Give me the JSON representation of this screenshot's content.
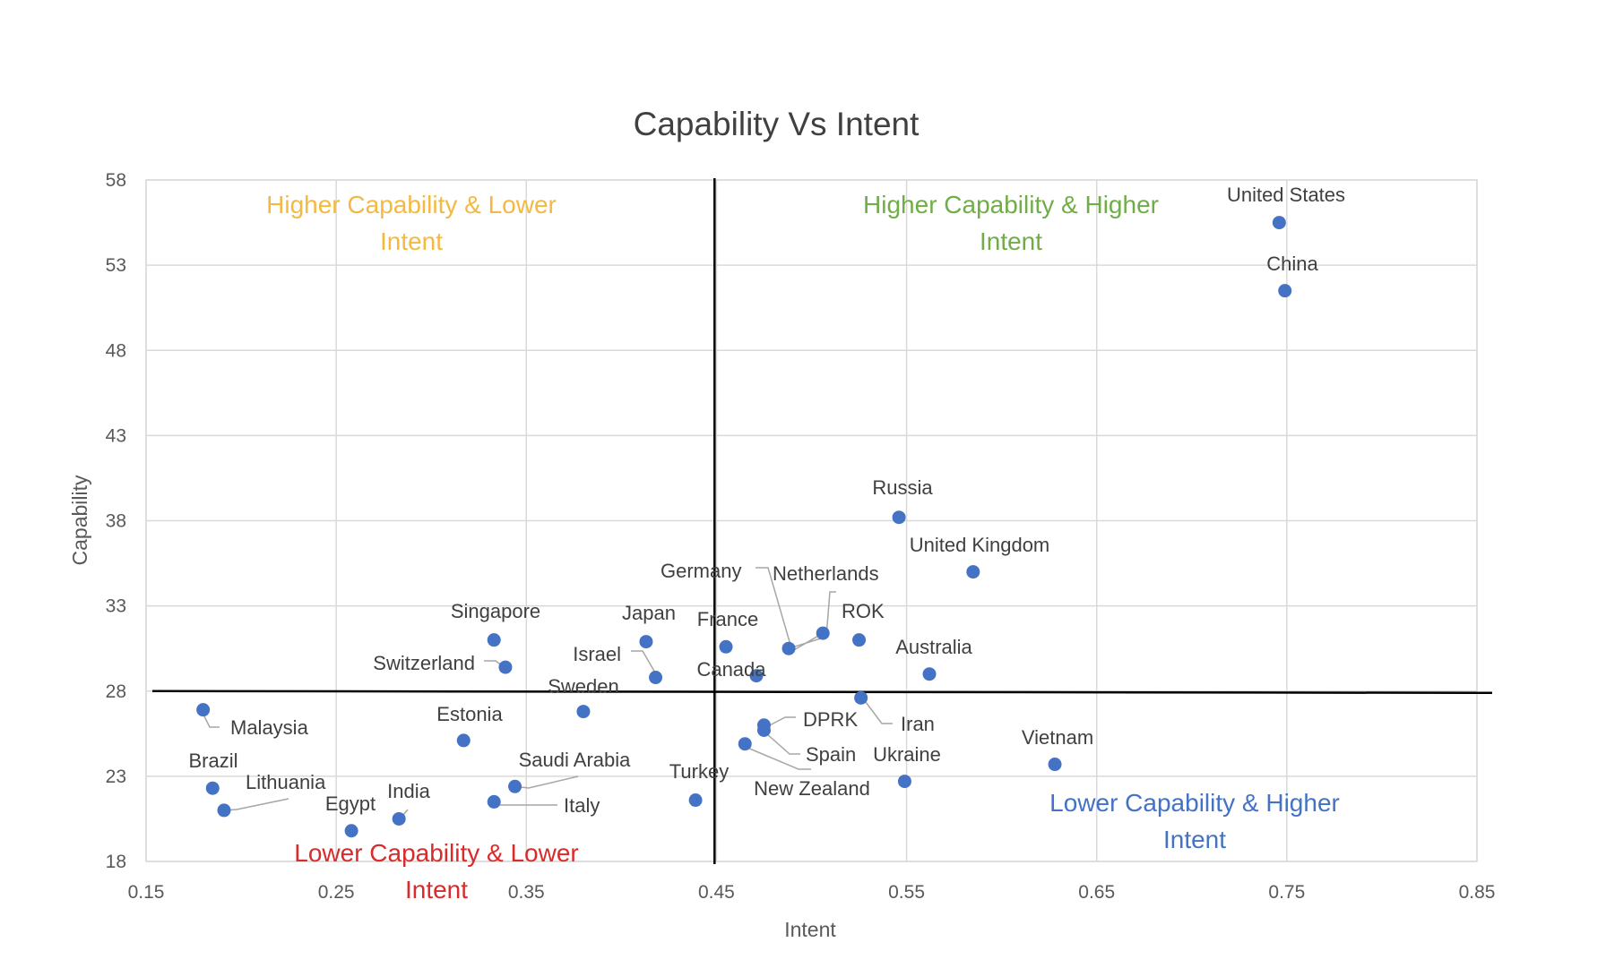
{
  "chart_data": {
    "type": "scatter",
    "title": "Capability Vs Intent",
    "xlabel": "Intent",
    "ylabel": "Capability",
    "xlim": [
      0.15,
      0.85
    ],
    "ylim": [
      18,
      58
    ],
    "xticks": [
      "0.15",
      "0.25",
      "0.35",
      "0.45",
      "0.55",
      "0.65",
      "0.75",
      "0.85"
    ],
    "yticks": [
      "18",
      "23",
      "28",
      "33",
      "38",
      "43",
      "48",
      "53",
      "58"
    ],
    "grid": true,
    "marker_color": "#4472C4",
    "divider_x": 0.449,
    "divider_y": 28,
    "points": [
      {
        "label": "United States",
        "x": 0.746,
        "y": 55.5
      },
      {
        "label": "China",
        "x": 0.749,
        "y": 51.5
      },
      {
        "label": "Russia",
        "x": 0.546,
        "y": 38.2
      },
      {
        "label": "United Kingdom",
        "x": 0.585,
        "y": 35.0
      },
      {
        "label": "Netherlands",
        "x": 0.488,
        "y": 30.5
      },
      {
        "label": "Germany",
        "x": 0.506,
        "y": 31.4
      },
      {
        "label": "ROK",
        "x": 0.525,
        "y": 31.0
      },
      {
        "label": "France",
        "x": 0.455,
        "y": 30.6
      },
      {
        "label": "Canada",
        "x": 0.471,
        "y": 28.9
      },
      {
        "label": "Australia",
        "x": 0.562,
        "y": 29.0
      },
      {
        "label": "Japan",
        "x": 0.413,
        "y": 30.9
      },
      {
        "label": "Israel",
        "x": 0.418,
        "y": 28.8
      },
      {
        "label": "Singapore",
        "x": 0.333,
        "y": 31.0
      },
      {
        "label": "Switzerland",
        "x": 0.339,
        "y": 29.4
      },
      {
        "label": "Sweden",
        "x": 0.38,
        "y": 26.8
      },
      {
        "label": "Iran",
        "x": 0.526,
        "y": 27.6
      },
      {
        "label": "DPRK",
        "x": 0.475,
        "y": 26.0
      },
      {
        "label": "Spain",
        "x": 0.475,
        "y": 25.7
      },
      {
        "label": "New Zealand",
        "x": 0.465,
        "y": 24.9
      },
      {
        "label": "Ukraine",
        "x": 0.549,
        "y": 22.7
      },
      {
        "label": "Vietnam",
        "x": 0.628,
        "y": 23.7
      },
      {
        "label": "Turkey",
        "x": 0.439,
        "y": 21.6
      },
      {
        "label": "Estonia",
        "x": 0.317,
        "y": 25.1
      },
      {
        "label": "Malaysia",
        "x": 0.18,
        "y": 26.9
      },
      {
        "label": "Saudi Arabia",
        "x": 0.344,
        "y": 22.4
      },
      {
        "label": "Italy",
        "x": 0.333,
        "y": 21.5
      },
      {
        "label": "Brazil",
        "x": 0.185,
        "y": 22.3
      },
      {
        "label": "Lithuania",
        "x": 0.191,
        "y": 21.0
      },
      {
        "label": "India",
        "x": 0.283,
        "y": 20.5
      },
      {
        "label": "Egypt",
        "x": 0.258,
        "y": 19.8
      }
    ],
    "quadrant_labels": [
      {
        "lines": [
          "Higher Capability & Lower",
          "Intent"
        ],
        "color": "#F4B942"
      },
      {
        "lines": [
          "Higher Capability & Higher",
          "Intent"
        ],
        "color": "#70AD47"
      },
      {
        "lines": [
          "Lower Capability & Higher",
          "Intent"
        ],
        "color": "#4472C4"
      },
      {
        "lines": [
          "Lower Capability & Lower",
          "Intent"
        ],
        "color": "#D92B2B"
      }
    ]
  }
}
